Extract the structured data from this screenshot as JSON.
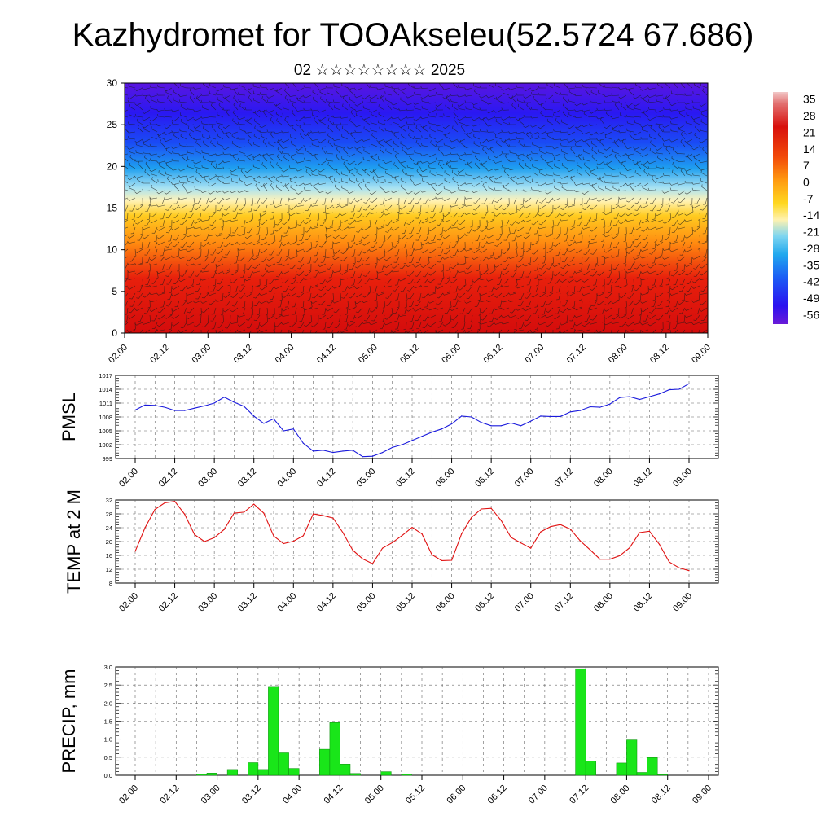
{
  "title": "Kazhydromet for TOOAkseleu(52.5724 67.686)",
  "subtitle": "02 ☆☆☆☆☆☆☆☆ 2025",
  "colors": {
    "pmsl_line": "#1a1adc",
    "temp_line": "#e01010",
    "precip_bar": "#19e619",
    "precip_edge": "#0a8a0a"
  },
  "x_ticks": [
    "02.00",
    "02.12",
    "03.00",
    "03.12",
    "04.00",
    "04.12",
    "05.00",
    "05.12",
    "06.00",
    "06.12",
    "07.00",
    "07.12",
    "08.00",
    "08.12",
    "09.00"
  ],
  "chart_data": [
    {
      "type": "heatmap",
      "name": "temperature-wind cross section",
      "ylim": [
        0,
        30
      ],
      "y_ticks": [
        "0",
        "5",
        "10",
        "15",
        "20",
        "25",
        "30"
      ],
      "x_ticks": [
        "02.00",
        "02.12",
        "03.00",
        "03.12",
        "04.00",
        "04.12",
        "05.00",
        "05.12",
        "06.00",
        "06.12",
        "07.00",
        "07.12",
        "08.00",
        "08.12",
        "09.00"
      ],
      "colorbar_labels": [
        "35",
        "28",
        "21",
        "14",
        "7",
        "0",
        "-7",
        "-14",
        "-21",
        "-28",
        "-35",
        "-42",
        "-49",
        "-56"
      ],
      "colorbar_range": [
        -60,
        38
      ],
      "overlay": "wind barbs"
    },
    {
      "type": "line",
      "ylabel": "PMSL",
      "ylim": [
        999,
        1017
      ],
      "y_ticks": [
        "999",
        "1002",
        "1005",
        "1008",
        "1011",
        "1014",
        "1017"
      ],
      "x": [
        0,
        3,
        6,
        9,
        12,
        15,
        18,
        21,
        24,
        27,
        30,
        33,
        36,
        39,
        42,
        45,
        48,
        51,
        54,
        57,
        60,
        63,
        66,
        69,
        72,
        75,
        78,
        81,
        84,
        87,
        90,
        93,
        96,
        99,
        102,
        105,
        108,
        111,
        114,
        117,
        120,
        123,
        126,
        129,
        132,
        135,
        138,
        141,
        144,
        147,
        150,
        153,
        156,
        159,
        162,
        165,
        168
      ],
      "values": [
        1009.5,
        1010.6,
        1010.5,
        1010.1,
        1009.4,
        1009.4,
        1009.9,
        1010.4,
        1011.0,
        1012.3,
        1011.2,
        1010.3,
        1008.2,
        1006.6,
        1007.6,
        1005.0,
        1005.4,
        1002.3,
        1000.6,
        1000.8,
        1000.3,
        1000.6,
        1000.8,
        999.4,
        999.5,
        1000.3,
        1001.4,
        1002.0,
        1002.9,
        1003.8,
        1004.7,
        1005.4,
        1006.5,
        1008.2,
        1008.0,
        1006.8,
        1006.1,
        1006.1,
        1006.7,
        1006.1,
        1007.1,
        1008.2,
        1008.1,
        1008.1,
        1009.1,
        1009.4,
        1010.2,
        1010.1,
        1010.8,
        1012.2,
        1012.4,
        1011.8,
        1012.4,
        1013.0,
        1013.9,
        1014.0,
        1015.2
      ]
    },
    {
      "type": "line",
      "ylabel": "TEMP at 2 M",
      "ylim": [
        8,
        32
      ],
      "y_ticks": [
        "8",
        "12",
        "16",
        "20",
        "24",
        "28",
        "32"
      ],
      "x": [
        0,
        3,
        6,
        9,
        12,
        15,
        18,
        21,
        24,
        27,
        30,
        33,
        36,
        39,
        42,
        45,
        48,
        51,
        54,
        57,
        60,
        63,
        66,
        69,
        72,
        75,
        78,
        81,
        84,
        87,
        90,
        93,
        96,
        99,
        102,
        105,
        108,
        111,
        114,
        117,
        120,
        123,
        126,
        129,
        132,
        135,
        138,
        141,
        144,
        147,
        150,
        153,
        156,
        159,
        162,
        165,
        168
      ],
      "values": [
        17.2,
        24.0,
        29.3,
        31.2,
        31.6,
        27.9,
        22.0,
        20.0,
        21.1,
        23.5,
        28.2,
        28.5,
        30.8,
        28.2,
        21.6,
        19.4,
        20.1,
        21.7,
        28.0,
        27.5,
        26.8,
        22.6,
        17.5,
        15.0,
        13.6,
        18.1,
        19.7,
        21.8,
        24.1,
        22.2,
        16.2,
        14.5,
        14.6,
        22.2,
        27.0,
        29.4,
        29.6,
        26.1,
        21.2,
        19.6,
        18.1,
        22.8,
        24.3,
        24.9,
        23.6,
        20.2,
        17.6,
        14.9,
        14.9,
        15.9,
        18.2,
        22.6,
        23.0,
        19.2,
        14.1,
        12.4,
        11.6
      ]
    },
    {
      "type": "bar",
      "ylabel": "PRECIP, mm",
      "ylim": [
        0,
        3.0
      ],
      "y_ticks": [
        "0.0",
        "0.5",
        "1.0",
        "1.5",
        "2.0",
        "2.5",
        "3.0"
      ],
      "x": [
        3,
        6,
        9,
        12,
        15,
        18,
        21,
        24,
        27,
        30,
        33,
        36,
        39,
        42,
        45,
        48,
        51,
        54,
        57,
        60,
        63,
        66,
        69,
        72,
        75,
        78,
        81,
        84,
        87,
        90,
        93,
        96,
        99,
        102,
        105,
        108,
        111,
        114,
        117,
        120,
        123,
        126,
        129,
        132,
        135,
        138,
        141,
        144,
        147,
        150,
        153,
        156,
        159,
        162,
        165,
        168
      ],
      "values": [
        0,
        0,
        0,
        0,
        0,
        0,
        0.03,
        0.06,
        0,
        0.16,
        0,
        0.35,
        0.16,
        2.46,
        0.62,
        0.19,
        0,
        0,
        0.72,
        1.46,
        0.31,
        0.05,
        0,
        0,
        0.1,
        0,
        0.03,
        0,
        0,
        0,
        0,
        0,
        0,
        0,
        0,
        0,
        0,
        0,
        0,
        0,
        0,
        0,
        0,
        2.95,
        0.4,
        0,
        0,
        0.34,
        0.98,
        0.08,
        0.49,
        0.02,
        0,
        0,
        0,
        0
      ]
    }
  ]
}
